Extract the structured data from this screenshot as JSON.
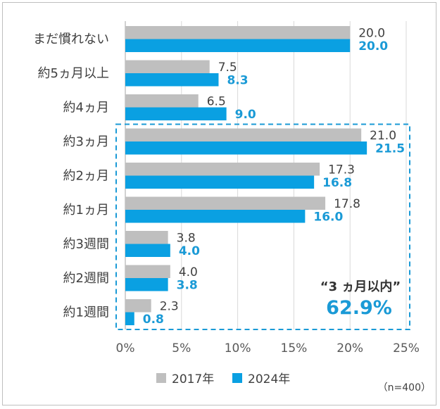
{
  "chart_data": {
    "type": "bar",
    "orientation": "horizontal",
    "categories": [
      "まだ慣れない",
      "約5ヵ月以上",
      "約4ヵ月",
      "約3ヵ月",
      "約2ヵ月",
      "約1ヵ月",
      "約3週間",
      "約2週間",
      "約1週間"
    ],
    "series": [
      {
        "name": "2017年",
        "color": "#bfbfbf",
        "values": [
          20.0,
          7.5,
          6.5,
          21.0,
          17.3,
          17.8,
          3.8,
          4.0,
          2.3
        ],
        "labels": [
          "20.0",
          "7.5",
          "6.5",
          "21.0",
          "17.3",
          "17.8",
          "3.8",
          "4.0",
          "2.3"
        ]
      },
      {
        "name": "2024年",
        "color": "#0aa0e2",
        "values": [
          20.0,
          8.3,
          9.0,
          21.5,
          16.8,
          16.0,
          4.0,
          3.8,
          0.8
        ],
        "labels": [
          "20.0",
          "8.3",
          "9.0",
          "21.5",
          "16.8",
          "16.0",
          "4.0",
          "3.8",
          "0.8"
        ]
      }
    ],
    "xlim": [
      0,
      25
    ],
    "xticks": [
      "0%",
      "5%",
      "10%",
      "15%",
      "20%",
      "25%"
    ],
    "grid": true,
    "legend_position": "bottom",
    "annotation": {
      "label": "“3 ヵ月以内”",
      "value": "62.9%",
      "highlight_color": "#1a9ad6"
    },
    "note": "（n=400）"
  }
}
